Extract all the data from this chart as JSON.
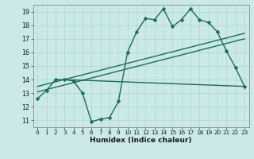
{
  "xlabel": "Humidex (Indice chaleur)",
  "background_color": "#cce9e9",
  "grid_color": "#aad4d4",
  "line_color": "#1a6b5a",
  "xlim": [
    -0.5,
    23.5
  ],
  "ylim": [
    10.5,
    19.5
  ],
  "xticks": [
    0,
    1,
    2,
    3,
    4,
    5,
    6,
    7,
    8,
    9,
    10,
    11,
    12,
    13,
    14,
    15,
    16,
    17,
    18,
    19,
    20,
    21,
    22,
    23
  ],
  "yticks": [
    11,
    12,
    13,
    14,
    15,
    16,
    17,
    18,
    19
  ],
  "series_main": {
    "x": [
      0,
      1,
      2,
      3,
      4,
      5,
      6,
      7,
      8,
      9,
      10,
      11,
      12,
      13,
      14,
      15,
      16,
      17,
      18,
      19,
      20,
      21,
      22,
      23
    ],
    "y": [
      12.6,
      13.2,
      14.0,
      14.0,
      13.9,
      13.0,
      10.9,
      11.1,
      11.2,
      12.4,
      16.0,
      17.5,
      18.5,
      18.4,
      19.2,
      17.9,
      18.4,
      19.2,
      18.4,
      18.2,
      17.5,
      16.1,
      14.9,
      13.5
    ]
  },
  "line1": {
    "x": [
      0,
      23
    ],
    "y": [
      13.5,
      17.4
    ]
  },
  "line2": {
    "x": [
      0,
      23
    ],
    "y": [
      13.1,
      17.0
    ]
  },
  "line3": {
    "x": [
      3,
      23
    ],
    "y": [
      14.0,
      13.5
    ]
  }
}
